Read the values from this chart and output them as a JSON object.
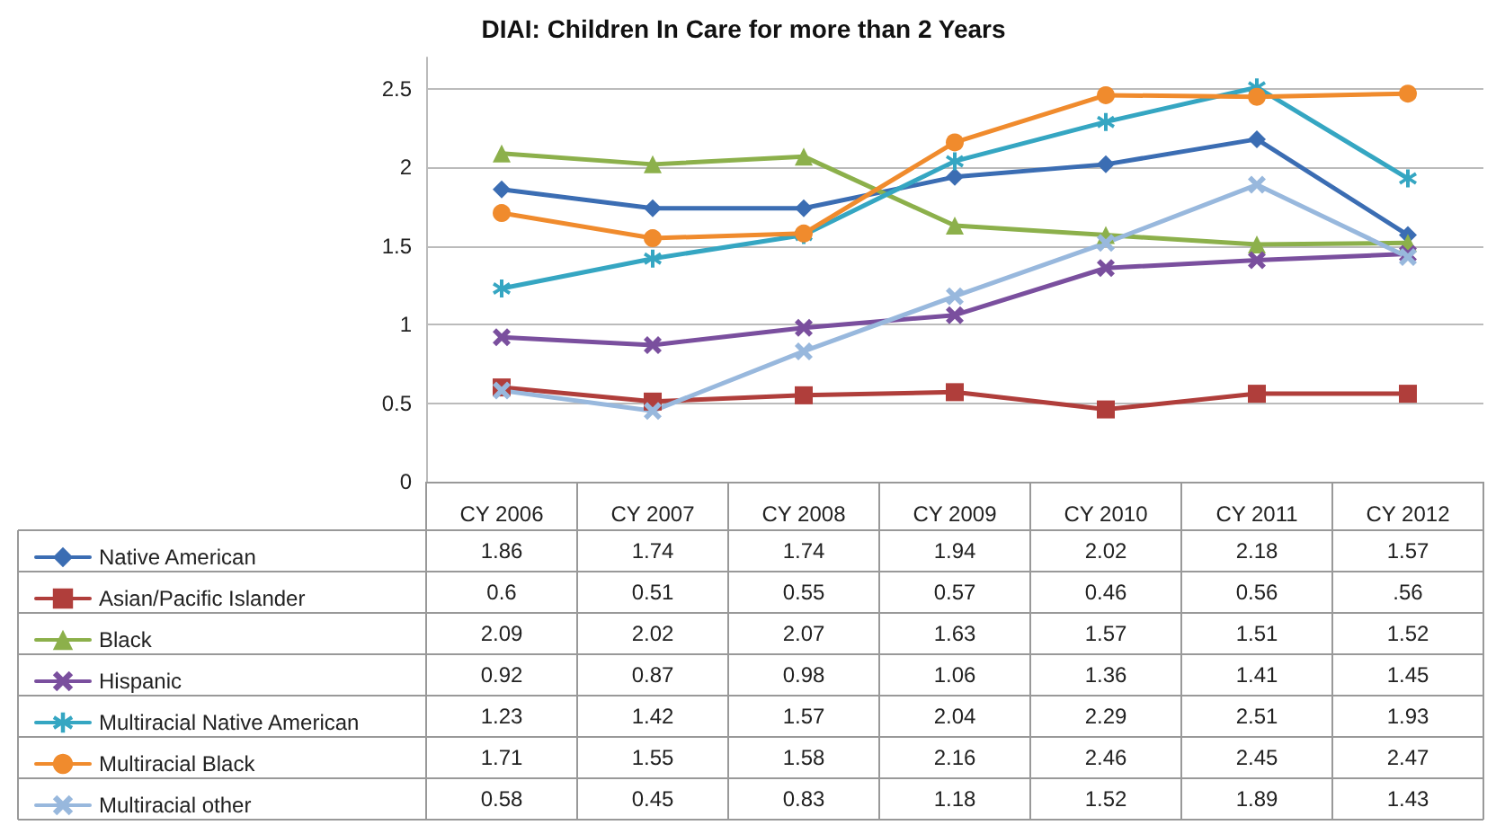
{
  "chart_data": {
    "type": "line",
    "title": "DIAI: Children In Care for more than 2 Years",
    "categories": [
      "CY 2006",
      "CY 2007",
      "CY 2008",
      "CY 2009",
      "CY 2010",
      "CY 2011",
      "CY 2012"
    ],
    "series": [
      {
        "name": "Native American",
        "color": "#3b6db3",
        "marker": "diamond",
        "values": [
          1.86,
          1.74,
          1.74,
          1.94,
          2.02,
          2.18,
          1.57
        ],
        "value_labels": [
          "1.86",
          "1.74",
          "1.74",
          "1.94",
          "2.02",
          "2.18",
          "1.57"
        ]
      },
      {
        "name": "Asian/Pacific Islander",
        "color": "#b03e3b",
        "marker": "square",
        "values": [
          0.6,
          0.51,
          0.55,
          0.57,
          0.46,
          0.56,
          0.56
        ],
        "value_labels": [
          "0.6",
          "0.51",
          "0.55",
          "0.57",
          "0.46",
          "0.56",
          ".56"
        ]
      },
      {
        "name": "Black",
        "color": "#8cb04b",
        "marker": "triangle",
        "values": [
          2.09,
          2.02,
          2.07,
          1.63,
          1.57,
          1.51,
          1.52
        ],
        "value_labels": [
          "2.09",
          "2.02",
          "2.07",
          "1.63",
          "1.57",
          "1.51",
          "1.52"
        ]
      },
      {
        "name": "Hispanic",
        "color": "#7a4f9e",
        "marker": "cross",
        "values": [
          0.92,
          0.87,
          0.98,
          1.06,
          1.36,
          1.41,
          1.45
        ],
        "value_labels": [
          "0.92",
          "0.87",
          "0.98",
          "1.06",
          "1.36",
          "1.41",
          "1.45"
        ]
      },
      {
        "name": "Multiracial Native American",
        "color": "#35a6c2",
        "marker": "star",
        "values": [
          1.23,
          1.42,
          1.57,
          2.04,
          2.29,
          2.51,
          1.93
        ],
        "value_labels": [
          "1.23",
          "1.42",
          "1.57",
          "2.04",
          "2.29",
          "2.51",
          "1.93"
        ]
      },
      {
        "name": "Multiracial Black",
        "color": "#f08b2d",
        "marker": "circle",
        "values": [
          1.71,
          1.55,
          1.58,
          2.16,
          2.46,
          2.45,
          2.47
        ],
        "value_labels": [
          "1.71",
          "1.55",
          "1.58",
          "2.16",
          "2.46",
          "2.45",
          "2.47"
        ]
      },
      {
        "name": "Multiracial other",
        "color": "#98b8dd",
        "marker": "cross",
        "values": [
          0.58,
          0.45,
          0.83,
          1.18,
          1.52,
          1.89,
          1.43
        ],
        "value_labels": [
          "0.58",
          "0.45",
          "0.83",
          "1.18",
          "1.52",
          "1.89",
          "1.43"
        ]
      }
    ],
    "ylim": [
      0,
      2.7
    ],
    "yticks": [
      0,
      0.5,
      1,
      1.5,
      2,
      2.5
    ],
    "grid": "y",
    "legend": "bottom",
    "line_style": "solid"
  }
}
